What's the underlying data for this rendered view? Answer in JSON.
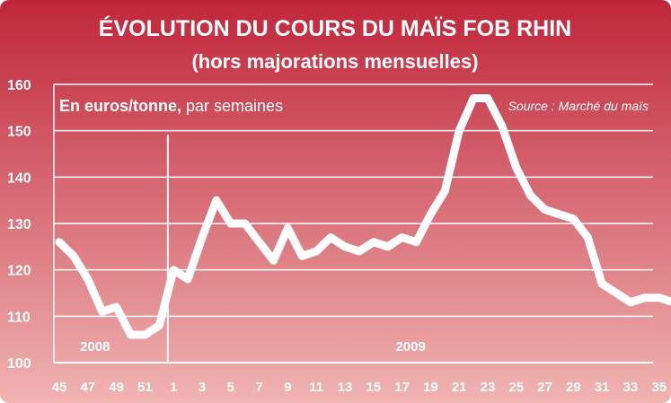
{
  "chart_data": {
    "type": "line",
    "title": "ÉVOLUTION DU COURS DU MAÏS FOB RHIN",
    "subtitle": "(hors majorations mensuelles)",
    "unit_label_bold": "En euros/tonne,",
    "unit_label_rest": " par semaines",
    "source": "Source : Marché du maïs",
    "ylim": [
      100,
      160
    ],
    "yticks": [
      "100",
      "110",
      "120",
      "130",
      "140",
      "150",
      "160"
    ],
    "xlim": [
      0,
      51
    ],
    "xticks": [
      {
        "label": "45",
        "x": 0
      },
      {
        "label": "47",
        "x": 2
      },
      {
        "label": "49",
        "x": 4
      },
      {
        "label": "51",
        "x": 6
      },
      {
        "label": "1",
        "x": 8
      },
      {
        "label": "3",
        "x": 10
      },
      {
        "label": "5",
        "x": 12
      },
      {
        "label": "7",
        "x": 14
      },
      {
        "label": "9",
        "x": 16
      },
      {
        "label": "11",
        "x": 18
      },
      {
        "label": "13",
        "x": 20
      },
      {
        "label": "15",
        "x": 22
      },
      {
        "label": "17",
        "x": 24
      },
      {
        "label": "19",
        "x": 26
      },
      {
        "label": "21",
        "x": 28
      },
      {
        "label": "23",
        "x": 30
      },
      {
        "label": "25",
        "x": 32
      },
      {
        "label": "27",
        "x": 34
      },
      {
        "label": "29",
        "x": 36
      },
      {
        "label": "31",
        "x": 38
      },
      {
        "label": "33",
        "x": 40
      },
      {
        "label": "35",
        "x": 42
      }
    ],
    "divider_x": 7.6,
    "year_labels": [
      {
        "label": "2008",
        "x": 2.5
      },
      {
        "label": "2009",
        "x": 24.6
      }
    ],
    "series": [
      {
        "x": [
          0,
          1,
          2,
          3,
          4,
          5,
          6,
          7,
          8,
          9,
          10,
          11,
          12,
          13,
          14,
          15,
          16,
          17,
          18,
          19,
          20,
          21,
          22,
          23,
          24,
          25,
          26,
          27,
          28,
          29,
          30,
          31,
          32,
          33,
          34,
          35,
          36,
          37,
          38,
          39,
          40,
          41,
          42,
          43
        ],
        "values": [
          126,
          123,
          118,
          111,
          112,
          106,
          106,
          108,
          120,
          118,
          127,
          135,
          130,
          130,
          126,
          122,
          129,
          123,
          124,
          127,
          125,
          124,
          126,
          125,
          127,
          126,
          132,
          137,
          150,
          157,
          157,
          151,
          142,
          136,
          133,
          132,
          131,
          127,
          117,
          115,
          113,
          114,
          114,
          113
        ]
      }
    ],
    "colors": {
      "background_top": "#c0263a",
      "background_bottom": "#f0b4b2",
      "line": "#ffffff",
      "grid": "#ffffff"
    }
  }
}
